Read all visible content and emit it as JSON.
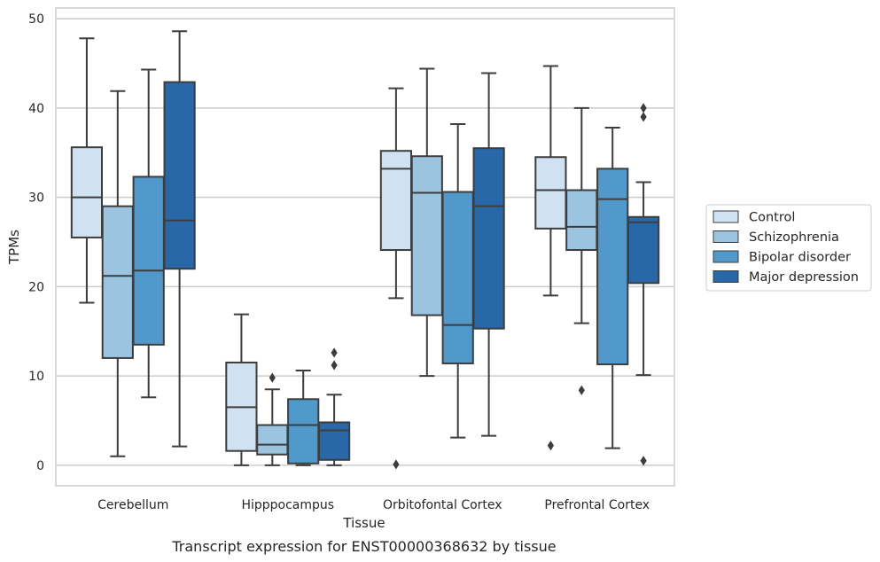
{
  "chart_data": {
    "type": "box",
    "caption": "Transcript expression for ENST00000368632 by tissue",
    "xlabel": "Tissue",
    "ylabel": "TPMs",
    "ylim": [
      -2.3,
      51.2
    ],
    "yticks": [
      0,
      10,
      20,
      30,
      40,
      50
    ],
    "grid": "horizontal",
    "legend_position": "right",
    "categories": [
      "Cerebellum",
      "Hipppocampus",
      "Orbitofontal Cortex",
      "Prefrontal Cortex"
    ],
    "series": [
      {
        "name": "Control",
        "color": "#d0e1f2",
        "boxes": [
          {
            "whislo": 18.2,
            "q1": 25.5,
            "med": 30.0,
            "q3": 35.6,
            "whishi": 47.8,
            "fliers": []
          },
          {
            "whislo": 0.0,
            "q1": 1.6,
            "med": 6.5,
            "q3": 11.5,
            "whishi": 16.9,
            "fliers": []
          },
          {
            "whislo": 18.7,
            "q1": 24.1,
            "med": 33.2,
            "q3": 35.2,
            "whishi": 42.2,
            "fliers": [
              0.1
            ]
          },
          {
            "whislo": 19.0,
            "q1": 26.5,
            "med": 30.8,
            "q3": 34.5,
            "whishi": 44.7,
            "fliers": [
              2.2
            ]
          }
        ]
      },
      {
        "name": "Schizophrenia",
        "color": "#9ac4df",
        "boxes": [
          {
            "whislo": 1.0,
            "q1": 12.0,
            "med": 21.2,
            "q3": 29.0,
            "whishi": 41.9,
            "fliers": []
          },
          {
            "whislo": 0.0,
            "q1": 1.2,
            "med": 2.3,
            "q3": 4.5,
            "whishi": 8.5,
            "fliers": [
              9.8
            ]
          },
          {
            "whislo": 10.0,
            "q1": 16.8,
            "med": 30.5,
            "q3": 34.6,
            "whishi": 44.4,
            "fliers": []
          },
          {
            "whislo": 15.9,
            "q1": 24.1,
            "med": 26.7,
            "q3": 30.8,
            "whishi": 40.0,
            "fliers": [
              8.4
            ]
          }
        ]
      },
      {
        "name": "Bipolar disorder",
        "color": "#5299cb",
        "boxes": [
          {
            "whislo": 7.6,
            "q1": 13.5,
            "med": 21.8,
            "q3": 32.3,
            "whishi": 44.3,
            "fliers": []
          },
          {
            "whislo": 0.0,
            "q1": 0.2,
            "med": 4.5,
            "q3": 7.4,
            "whishi": 10.6,
            "fliers": []
          },
          {
            "whislo": 3.1,
            "q1": 11.4,
            "med": 15.7,
            "q3": 30.6,
            "whishi": 38.2,
            "fliers": []
          },
          {
            "whislo": 1.9,
            "q1": 11.3,
            "med": 29.8,
            "q3": 33.2,
            "whishi": 37.8,
            "fliers": []
          }
        ]
      },
      {
        "name": "Major depression",
        "color": "#2868a8",
        "boxes": [
          {
            "whislo": 2.1,
            "q1": 22.0,
            "med": 27.4,
            "q3": 42.9,
            "whishi": 48.6,
            "fliers": []
          },
          {
            "whislo": 0.0,
            "q1": 0.6,
            "med": 3.9,
            "q3": 4.8,
            "whishi": 7.9,
            "fliers": [
              11.2,
              12.6
            ]
          },
          {
            "whislo": 3.3,
            "q1": 15.3,
            "med": 29.0,
            "q3": 35.5,
            "whishi": 43.9,
            "fliers": []
          },
          {
            "whislo": 10.1,
            "q1": 20.4,
            "med": 27.2,
            "q3": 27.8,
            "whishi": 31.7,
            "fliers": [
              0.5,
              39.0,
              40.0
            ]
          }
        ]
      }
    ]
  }
}
